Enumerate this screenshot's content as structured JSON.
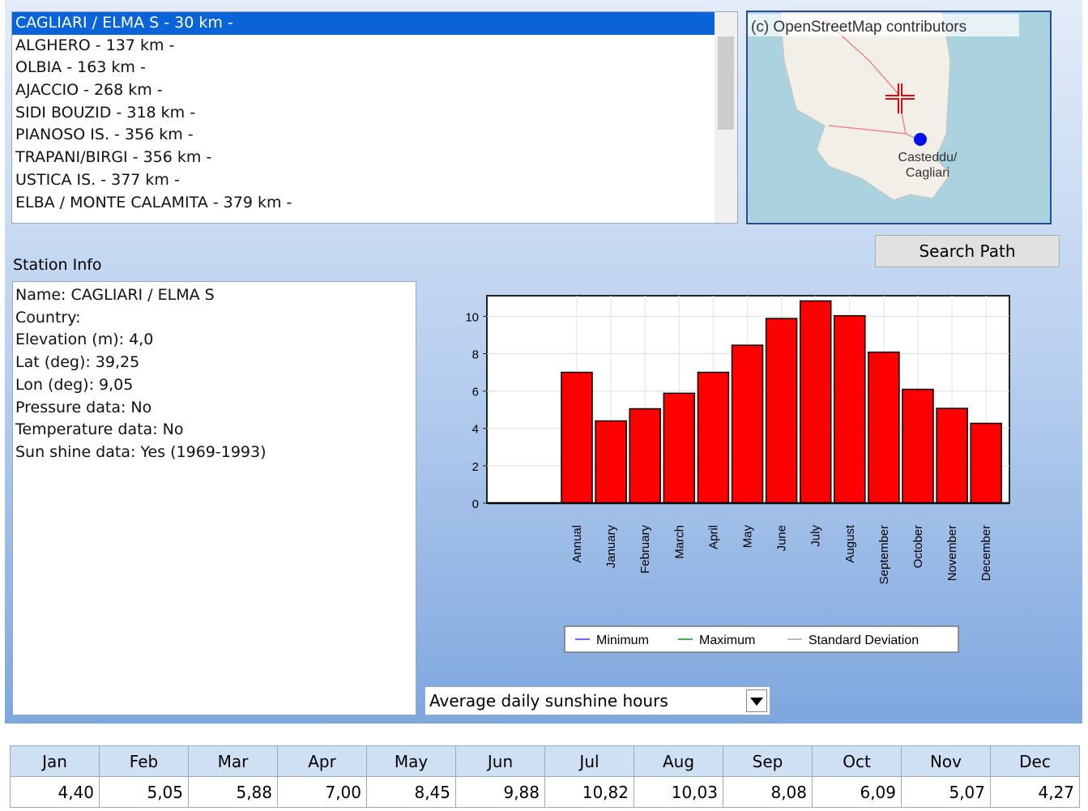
{
  "station_list": {
    "items": [
      "CAGLIARI / ELMA S - 30 km -",
      "ALGHERO - 137 km -",
      "OLBIA - 163 km -",
      "AJACCIO - 268 km -",
      "SIDI BOUZID - 318 km -",
      "PIANOSO IS. - 356 km -",
      "TRAPANI/BIRGI - 356 km -",
      "USTICA IS. - 377 km -",
      "ELBA / MONTE CALAMITA - 379 km -"
    ]
  },
  "map": {
    "attribution": "(c) OpenStreetMap contributors",
    "place_line1": "Casteddu/",
    "place_line2": "Cagliari"
  },
  "search_button": "Search Path",
  "station_info": {
    "label": "Station Info",
    "lines": [
      "Name: CAGLIARI / ELMA S",
      "Country:",
      "Elevation (m): 4,0",
      "Lat (deg): 39,25",
      "Lon (deg): 9,05",
      "Pressure data: No",
      "Temperature data: No",
      "Sun shine data: Yes (1969-1993)"
    ]
  },
  "chart_data": {
    "type": "bar",
    "categories": [
      "Annual",
      "January",
      "February",
      "March",
      "April",
      "May",
      "June",
      "July",
      "August",
      "September",
      "October",
      "November",
      "December"
    ],
    "values": [
      7.0,
      4.4,
      5.05,
      5.88,
      7.0,
      8.45,
      9.88,
      10.82,
      10.03,
      8.08,
      6.09,
      5.07,
      4.27
    ],
    "color": "#ff0000",
    "ylim": [
      0,
      11.1
    ],
    "yticks": [
      0,
      2,
      4,
      6,
      8,
      10
    ],
    "legend": [
      {
        "name": "Minimum",
        "color": "#6b6bff"
      },
      {
        "name": "Maximum",
        "color": "#4caf50"
      },
      {
        "name": "Standard Deviation",
        "color": "#bbbbbb"
      }
    ]
  },
  "dropdown": {
    "selected": "Average daily sunshine hours"
  },
  "table": {
    "headers": [
      "Jan",
      "Feb",
      "Mar",
      "Apr",
      "May",
      "Jun",
      "Jul",
      "Aug",
      "Sep",
      "Oct",
      "Nov",
      "Dec"
    ],
    "rows": [
      [
        "4,40",
        "5,05",
        "5,88",
        "7,00",
        "8,45",
        "9,88",
        "10,82",
        "10,03",
        "8,08",
        "6,09",
        "5,07",
        "4,27"
      ]
    ]
  }
}
